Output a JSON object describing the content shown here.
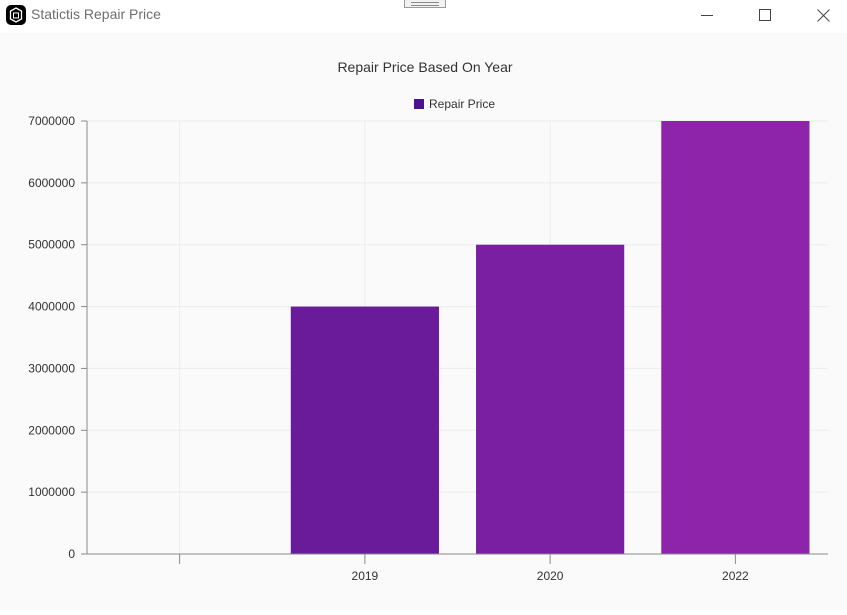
{
  "window": {
    "title": "Statictis Repair Price",
    "icon": "app-logo-icon",
    "controls": [
      "minimize-icon",
      "maximize-icon",
      "close-icon"
    ]
  },
  "chart_data": {
    "type": "bar",
    "title": "Repair Price Based On Year",
    "legend": {
      "position": "top",
      "entries": [
        "Repair Price"
      ]
    },
    "categories": [
      "",
      "2019",
      "2020",
      "2022"
    ],
    "series": [
      {
        "name": "Repair Price",
        "values": [
          0,
          4000000,
          5000000,
          7000000
        ]
      }
    ],
    "bar_colors": [
      "#5b1a94",
      "#6a1b9a",
      "#7b1fa2",
      "#8e24aa"
    ],
    "legend_color": "#4a148c",
    "ylim": [
      0,
      7000000
    ],
    "yticks": [
      0,
      1000000,
      2000000,
      3000000,
      4000000,
      5000000,
      6000000,
      7000000
    ],
    "xlabel": "",
    "ylabel": "",
    "grid": true
  }
}
